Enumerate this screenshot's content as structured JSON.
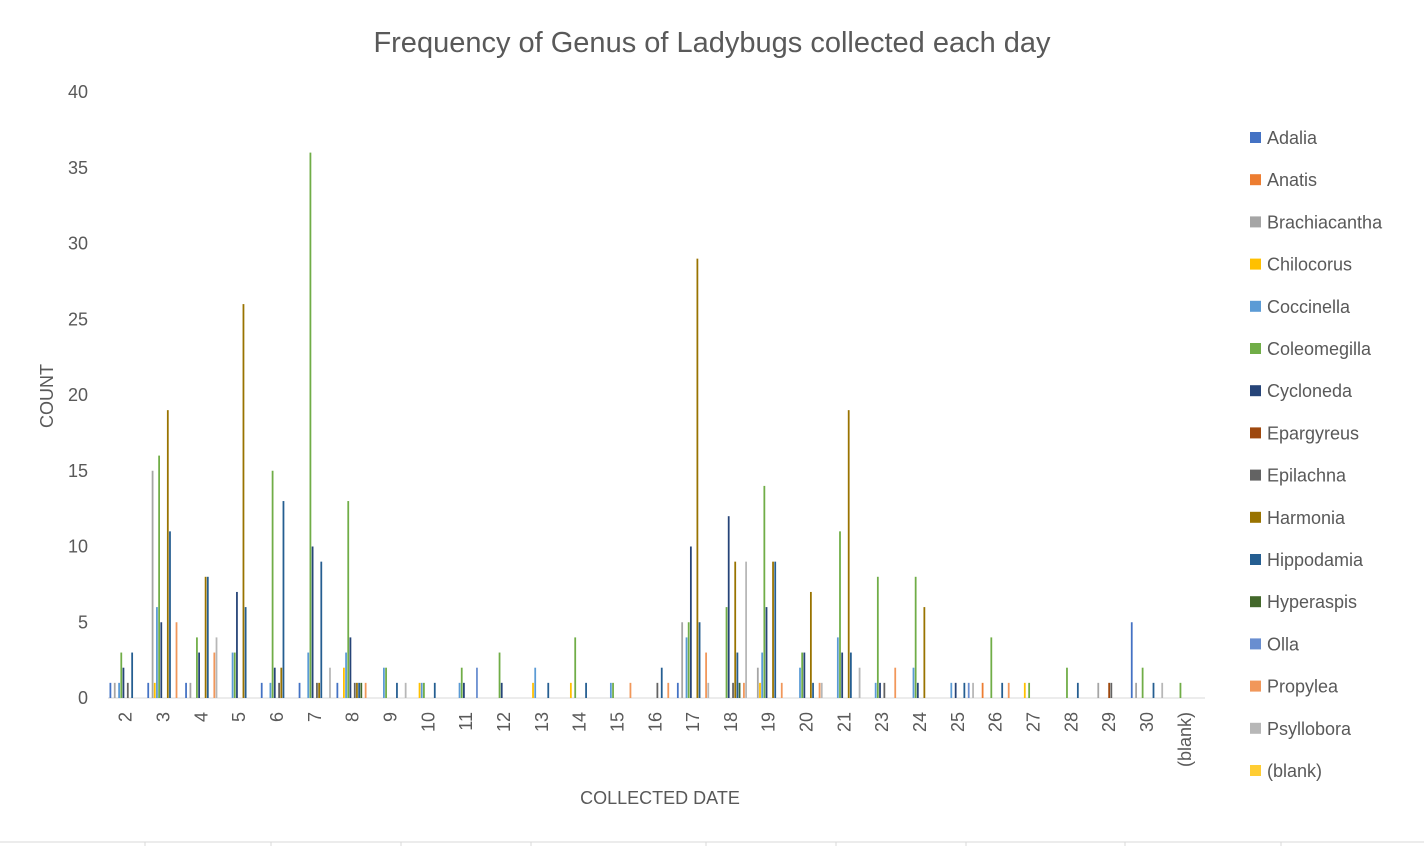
{
  "chart_data": {
    "type": "bar",
    "title": "Frequency of Genus of Ladybugs collected each day",
    "xlabel": "COLLECTED DATE",
    "ylabel": "COUNT",
    "ylim": [
      0,
      40
    ],
    "yticks": [
      0,
      5,
      10,
      15,
      20,
      25,
      30,
      35,
      40
    ],
    "grid": false,
    "legend_position": "right",
    "categories": [
      "2",
      "3",
      "4",
      "5",
      "6",
      "7",
      "8",
      "9",
      "10",
      "11",
      "12",
      "13",
      "14",
      "15",
      "16",
      "17",
      "18",
      "19",
      "20",
      "21",
      "23",
      "24",
      "25",
      "26",
      "27",
      "28",
      "29",
      "30",
      "(blank)"
    ],
    "series": [
      {
        "name": "Adalia",
        "color": "#4472C4",
        "values": [
          1,
          1,
          1,
          0,
          1,
          1,
          1,
          0,
          0,
          0,
          0,
          0,
          0,
          0,
          0,
          1,
          0,
          0,
          0,
          0,
          0,
          0,
          0,
          0,
          0,
          0,
          0,
          5,
          0
        ]
      },
      {
        "name": "Anatis",
        "color": "#ED7D31",
        "values": [
          0,
          0,
          0,
          0,
          0,
          0,
          0,
          0,
          0,
          0,
          0,
          0,
          0,
          0,
          0,
          0,
          0,
          0,
          0,
          0,
          0,
          0,
          0,
          1,
          0,
          0,
          0,
          0,
          0
        ]
      },
      {
        "name": "Brachiacantha",
        "color": "#A5A5A5",
        "values": [
          1,
          15,
          1,
          0,
          0,
          0,
          0,
          0,
          0,
          0,
          0,
          0,
          0,
          0,
          0,
          5,
          0,
          2,
          0,
          0,
          0,
          0,
          0,
          0,
          0,
          0,
          1,
          1,
          0
        ]
      },
      {
        "name": "Chilocorus",
        "color": "#FFC000",
        "values": [
          0,
          1,
          0,
          0,
          0,
          0,
          2,
          0,
          1,
          0,
          0,
          1,
          1,
          0,
          0,
          0,
          0,
          1,
          0,
          0,
          0,
          0,
          0,
          0,
          1,
          0,
          0,
          0,
          0
        ]
      },
      {
        "name": "Coccinella",
        "color": "#5B9BD5",
        "values": [
          1,
          6,
          0,
          3,
          1,
          3,
          3,
          2,
          1,
          1,
          0,
          2,
          0,
          1,
          0,
          4,
          0,
          3,
          2,
          4,
          1,
          2,
          1,
          0,
          0,
          0,
          0,
          0,
          0
        ]
      },
      {
        "name": "Coleomegilla",
        "color": "#70AD47",
        "values": [
          3,
          16,
          4,
          3,
          15,
          36,
          13,
          2,
          1,
          2,
          3,
          0,
          4,
          1,
          0,
          5,
          6,
          14,
          3,
          11,
          8,
          8,
          0,
          4,
          1,
          2,
          0,
          2,
          1
        ]
      },
      {
        "name": "Cycloneda",
        "color": "#264478",
        "values": [
          2,
          5,
          3,
          7,
          2,
          10,
          4,
          0,
          0,
          1,
          1,
          0,
          0,
          0,
          0,
          10,
          12,
          6,
          3,
          3,
          1,
          1,
          1,
          0,
          0,
          0,
          0,
          0,
          0
        ]
      },
      {
        "name": "Epargyreus",
        "color": "#9E480E",
        "values": [
          0,
          0,
          0,
          0,
          0,
          0,
          0,
          0,
          0,
          0,
          0,
          0,
          0,
          0,
          0,
          0,
          0,
          0,
          0,
          0,
          0,
          0,
          0,
          0,
          0,
          0,
          1,
          0,
          0
        ]
      },
      {
        "name": "Epilachna",
        "color": "#636363",
        "values": [
          1,
          0,
          0,
          0,
          1,
          1,
          1,
          0,
          0,
          0,
          0,
          0,
          0,
          0,
          1,
          0,
          1,
          0,
          0,
          0,
          1,
          0,
          0,
          0,
          0,
          0,
          1,
          0,
          0
        ]
      },
      {
        "name": "Harmonia",
        "color": "#997300",
        "values": [
          0,
          19,
          8,
          26,
          2,
          1,
          1,
          0,
          0,
          0,
          0,
          0,
          0,
          0,
          0,
          29,
          9,
          9,
          7,
          19,
          0,
          6,
          0,
          0,
          0,
          0,
          0,
          0,
          0
        ]
      },
      {
        "name": "Hippodamia",
        "color": "#255E91",
        "values": [
          3,
          11,
          8,
          6,
          13,
          9,
          1,
          1,
          1,
          0,
          0,
          1,
          1,
          0,
          2,
          5,
          3,
          9,
          1,
          3,
          0,
          0,
          1,
          1,
          0,
          1,
          0,
          1,
          0
        ]
      },
      {
        "name": "Hyperaspis",
        "color": "#43682B",
        "values": [
          0,
          0,
          0,
          0,
          0,
          0,
          1,
          0,
          0,
          0,
          0,
          0,
          0,
          0,
          0,
          0,
          1,
          0,
          0,
          0,
          0,
          0,
          0,
          0,
          0,
          0,
          0,
          0,
          0
        ]
      },
      {
        "name": "Olla",
        "color": "#698ED0",
        "values": [
          0,
          0,
          0,
          0,
          0,
          0,
          0,
          0,
          0,
          2,
          0,
          0,
          0,
          0,
          0,
          0,
          0,
          0,
          0,
          0,
          0,
          0,
          1,
          0,
          0,
          0,
          0,
          0,
          0
        ]
      },
      {
        "name": "Propylea",
        "color": "#F1975A",
        "values": [
          0,
          5,
          3,
          0,
          0,
          0,
          1,
          0,
          0,
          0,
          0,
          0,
          0,
          1,
          1,
          3,
          1,
          1,
          1,
          0,
          2,
          0,
          0,
          1,
          0,
          0,
          0,
          0,
          0
        ]
      },
      {
        "name": "Psyllobora",
        "color": "#B7B7B7",
        "values": [
          0,
          0,
          4,
          0,
          0,
          2,
          0,
          1,
          0,
          0,
          0,
          0,
          0,
          0,
          0,
          1,
          9,
          0,
          1,
          2,
          0,
          0,
          1,
          0,
          0,
          0,
          0,
          1,
          0
        ]
      },
      {
        "name": "(blank)",
        "color": "#FFCD33",
        "values": [
          0,
          0,
          0,
          0,
          0,
          0,
          0,
          0,
          0,
          0,
          0,
          0,
          0,
          0,
          0,
          0,
          0,
          0,
          0,
          0,
          0,
          0,
          0,
          0,
          0,
          0,
          0,
          0,
          0
        ]
      }
    ]
  }
}
